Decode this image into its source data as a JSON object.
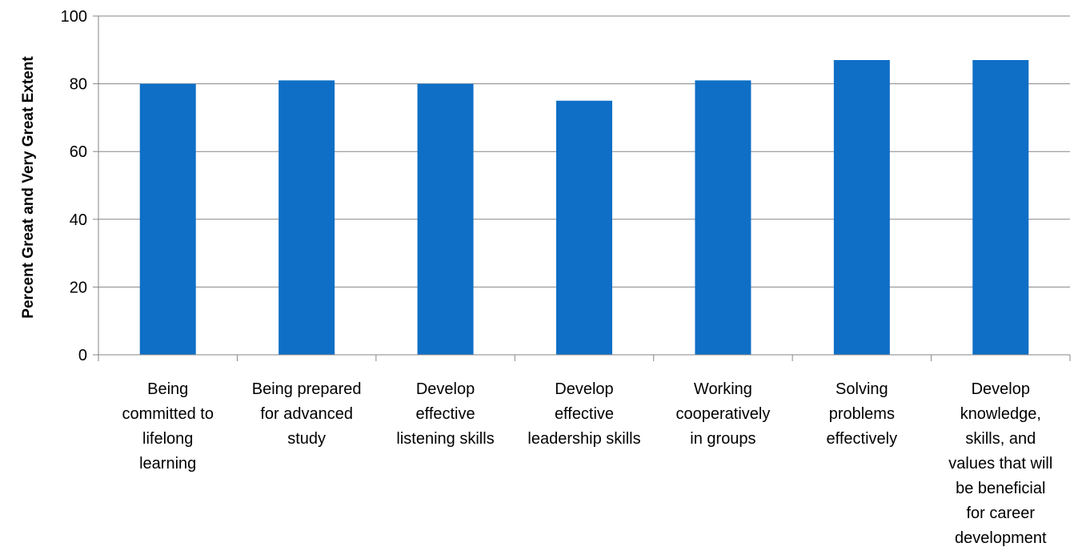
{
  "chart_data": {
    "type": "bar",
    "title": "",
    "xlabel": "",
    "ylabel": "Percent Great and Very Great Extent",
    "categories": [
      "Being\ncommitted to\nlifelong\nlearning",
      "Being prepared\nfor advanced\nstudy",
      "Develop\neffective\nlistening skills",
      "Develop\neffective\nleadership skills",
      "Working\ncooperatively\nin groups",
      "Solving\nproblems\neffectively",
      "Develop\nknowledge,\nskills, and\nvalues that will\nbe beneficial\nfor career\ndevelopment"
    ],
    "values": [
      80,
      81,
      80,
      75,
      81,
      87,
      87
    ],
    "ylim": [
      0,
      100
    ],
    "yticks": [
      "0",
      "20",
      "40",
      "60",
      "80",
      "100"
    ],
    "grid": true,
    "legend": "none",
    "colors": {
      "bar": "#0F6FC6",
      "grid": "#868686",
      "axis": "#868686"
    }
  }
}
